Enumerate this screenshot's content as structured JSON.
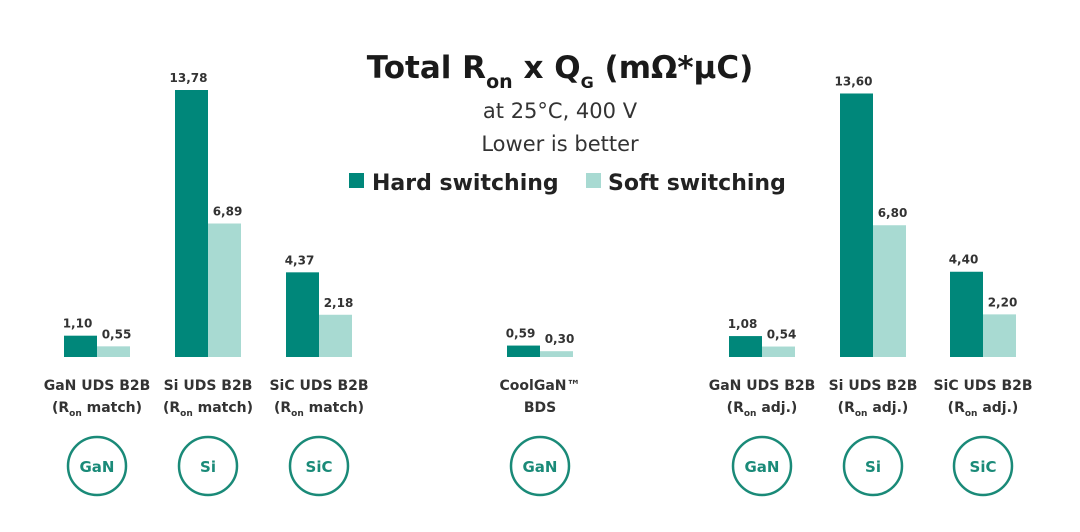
{
  "chart_data": {
    "type": "bar",
    "title": "Total R",
    "title_sub1": "on",
    "title_mid": " x Q",
    "title_sub2": "G",
    "title_end": " (mΩ*µC)",
    "subtitle": "at 25°C, 400 V",
    "subtitle2": "Lower is better",
    "legend_placement": "top-center",
    "grid": false,
    "colors": {
      "hard": "#00877a",
      "soft": "#a8dad2",
      "material": "#1a8a78"
    },
    "categories": [
      {
        "line1": "GaN UDS B2B",
        "line2_pre": "(R",
        "line2_sub": "on",
        "line2_post": " match)",
        "material": "GaN"
      },
      {
        "line1": "Si UDS B2B",
        "line2_pre": "(R",
        "line2_sub": "on",
        "line2_post": " match)",
        "material": "Si"
      },
      {
        "line1": "SiC UDS B2B",
        "line2_pre": "(R",
        "line2_sub": "on",
        "line2_post": " match)",
        "material": "SiC"
      },
      {
        "line1": "CoolGaN™",
        "line2_pre": "BDS",
        "line2_sub": "",
        "line2_post": "",
        "material": "GaN"
      },
      {
        "line1": "GaN UDS B2B",
        "line2_pre": "(R",
        "line2_sub": "on",
        "line2_post": " adj.)",
        "material": "GaN"
      },
      {
        "line1": "Si UDS B2B",
        "line2_pre": "(R",
        "line2_sub": "on",
        "line2_post": " adj.)",
        "material": "Si"
      },
      {
        "line1": "SiC UDS B2B",
        "line2_pre": "(R",
        "line2_sub": "on",
        "line2_post": " adj.)",
        "material": "SiC"
      }
    ],
    "series": [
      {
        "name": "Hard switching",
        "values": [
          1.1,
          13.78,
          4.37,
          0.59,
          1.08,
          13.6,
          4.4
        ],
        "labels": [
          "1,10",
          "13,78",
          "4,37",
          "0,59",
          "1,08",
          "13,60",
          "4,40"
        ]
      },
      {
        "name": "Soft switching",
        "values": [
          0.55,
          6.89,
          2.18,
          0.3,
          0.54,
          6.8,
          2.2
        ],
        "labels": [
          "0,55",
          "6,89",
          "2,18",
          "0,30",
          "0,54",
          "6,80",
          "2,20"
        ]
      }
    ],
    "ylim": [
      0,
      14
    ]
  }
}
